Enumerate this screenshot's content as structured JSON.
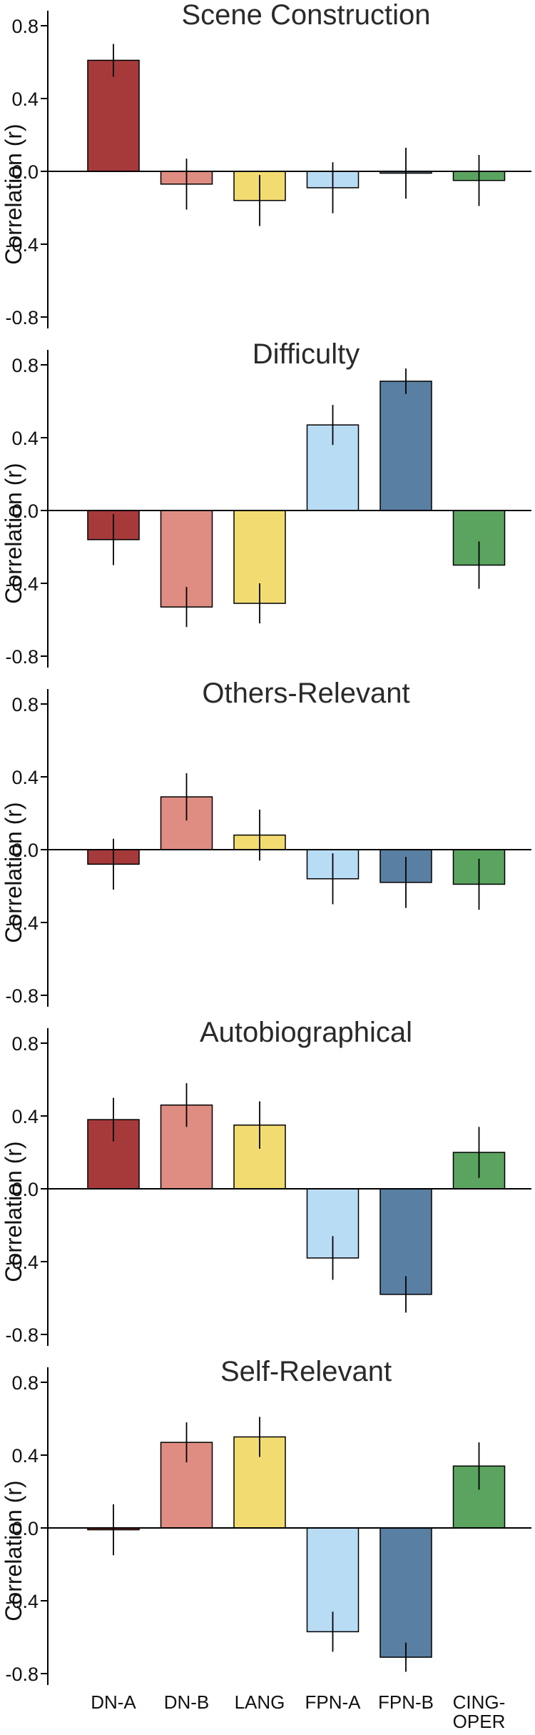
{
  "chart_data": [
    {
      "type": "bar",
      "title": "Scene Construction",
      "ylabel": "Correlation (r)",
      "ylim": [
        -0.85,
        0.85
      ],
      "yticks": [
        "0.8",
        "0.4",
        "0.0",
        "-0.4",
        "-0.8"
      ],
      "grid": false,
      "values": [
        0.61,
        -0.07,
        -0.16,
        -0.09,
        -0.01,
        -0.05
      ],
      "error": [
        0.09,
        0.14,
        0.14,
        0.14,
        0.14,
        0.14
      ]
    },
    {
      "type": "bar",
      "title": "Difficulty",
      "ylabel": "Correlation (r)",
      "ylim": [
        -0.85,
        0.85
      ],
      "yticks": [
        "0.8",
        "0.4",
        "0.0",
        "-0.4",
        "-0.8"
      ],
      "grid": false,
      "values": [
        -0.16,
        -0.53,
        -0.51,
        0.47,
        0.71,
        -0.3
      ],
      "error": [
        0.14,
        0.11,
        0.11,
        0.11,
        0.07,
        0.13
      ]
    },
    {
      "type": "bar",
      "title": "Others-Relevant",
      "ylabel": "Correlation (r)",
      "ylim": [
        -0.85,
        0.85
      ],
      "yticks": [
        "0.8",
        "0.4",
        "0.0",
        "-0.4",
        "-0.8"
      ],
      "grid": false,
      "values": [
        -0.08,
        0.29,
        0.08,
        -0.16,
        -0.18,
        -0.19
      ],
      "error": [
        0.14,
        0.13,
        0.14,
        0.14,
        0.14,
        0.14
      ]
    },
    {
      "type": "bar",
      "title": "Autobiographical",
      "ylabel": "Correlation (r)",
      "ylim": [
        -0.85,
        0.85
      ],
      "yticks": [
        "0.8",
        "0.4",
        "0.0",
        "-0.4",
        "-0.8"
      ],
      "grid": false,
      "values": [
        0.38,
        0.46,
        0.35,
        -0.38,
        -0.58,
        0.2
      ],
      "error": [
        0.12,
        0.12,
        0.13,
        0.12,
        0.1,
        0.14
      ]
    },
    {
      "type": "bar",
      "title": "Self-Relevant",
      "ylabel": "Correlation (r)",
      "ylim": [
        -0.85,
        0.85
      ],
      "yticks": [
        "0.8",
        "0.4",
        "0.0",
        "-0.4",
        "-0.8"
      ],
      "grid": false,
      "values": [
        -0.01,
        0.47,
        0.5,
        -0.57,
        -0.71,
        0.34
      ],
      "error": [
        0.14,
        0.11,
        0.11,
        0.11,
        0.08,
        0.13
      ]
    }
  ],
  "categories": [
    [
      "DN-A"
    ],
    [
      "DN-B"
    ],
    [
      "LANG"
    ],
    [
      "FPN-A"
    ],
    [
      "FPN-B"
    ],
    [
      "CING-",
      "OPER"
    ]
  ],
  "colors": [
    "#a63a3b",
    "#df8d82",
    "#f2dc72",
    "#b9dcf5",
    "#597fa2",
    "#5aa45f"
  ]
}
